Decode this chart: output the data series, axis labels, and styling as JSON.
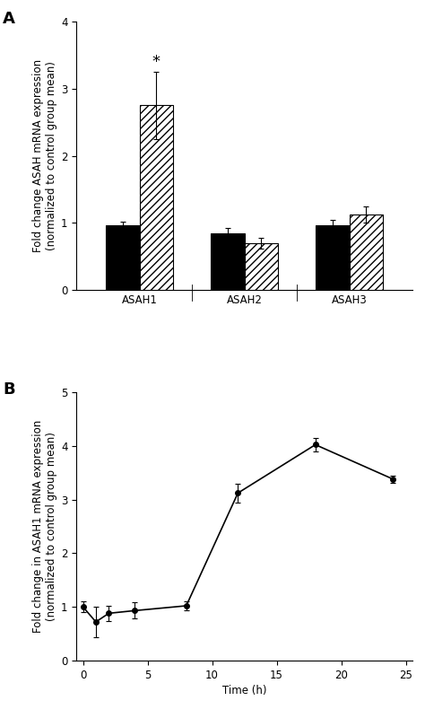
{
  "panel_A": {
    "groups": [
      "ASAH1",
      "ASAH2",
      "ASAH3"
    ],
    "black_values": [
      0.97,
      0.85,
      0.97
    ],
    "black_errors": [
      0.05,
      0.07,
      0.08
    ],
    "hatch_values": [
      2.75,
      0.7,
      1.12
    ],
    "hatch_errors": [
      0.5,
      0.08,
      0.12
    ],
    "ylim": [
      0,
      4
    ],
    "yticks": [
      0,
      1,
      2,
      3,
      4
    ],
    "ylabel": "Fold change ASAH mRNA expression\n(normalized to control group mean)",
    "star_label": "*",
    "star_y": 3.28
  },
  "panel_B": {
    "x": [
      0,
      1,
      2,
      4,
      8,
      12,
      18,
      24
    ],
    "y": [
      1.0,
      0.72,
      0.88,
      0.93,
      1.02,
      3.12,
      4.02,
      3.38
    ],
    "yerr": [
      0.1,
      0.28,
      0.14,
      0.15,
      0.08,
      0.18,
      0.13,
      0.07
    ],
    "ylim": [
      0,
      5
    ],
    "yticks": [
      0,
      1,
      2,
      3,
      4,
      5
    ],
    "xticks": [
      0,
      5,
      10,
      15,
      20,
      25
    ],
    "xlim": [
      -0.5,
      25.5
    ],
    "xlabel": "Time (h)",
    "ylabel": "Fold change in ASAH1 mRNA expression\n(normalized to control group mean)"
  },
  "bar_width": 0.32,
  "black_color": "#000000",
  "hatch_color": "#ffffff",
  "hatch_pattern": "////",
  "edge_color": "#000000",
  "line_color": "#000000",
  "marker": "o",
  "marker_size": 4,
  "capsize": 2.5,
  "fontsize_label": 8.5,
  "fontsize_tick": 8.5,
  "fontsize_panel": 13,
  "fontsize_star": 13
}
